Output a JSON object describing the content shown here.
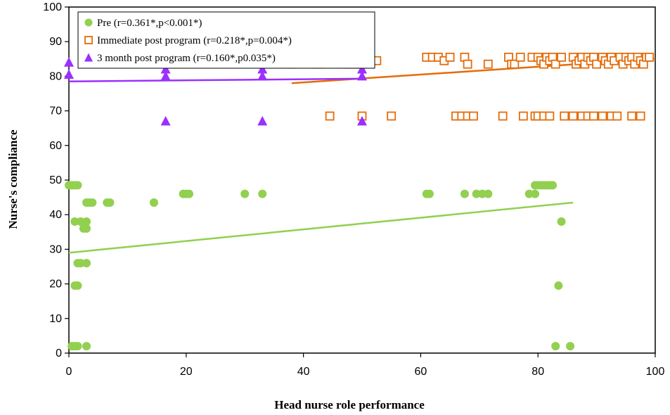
{
  "chart_data": {
    "type": "scatter",
    "xlabel": "Head nurse role performance",
    "ylabel": "Nurse's compliance",
    "xlim": [
      0,
      100
    ],
    "ylim": [
      0,
      100
    ],
    "xticks": [
      0,
      20,
      40,
      60,
      80,
      100
    ],
    "yticks": [
      0,
      10,
      20,
      30,
      40,
      50,
      60,
      70,
      80,
      90,
      100
    ],
    "grid": false,
    "legend_position": "top-left",
    "series": [
      {
        "name": "Pre (r=0.361*,p<0.001*)",
        "marker": "circle",
        "color": "#92d050",
        "trendline": [
          [
            0,
            29
          ],
          [
            86,
            43.5
          ]
        ],
        "points": [
          [
            0,
            48.5
          ],
          [
            0.5,
            48.5
          ],
          [
            1,
            48.5
          ],
          [
            1.5,
            48.5
          ],
          [
            1,
            38
          ],
          [
            2,
            38
          ],
          [
            3,
            38
          ],
          [
            2.5,
            36
          ],
          [
            3,
            36
          ],
          [
            3,
            43.5
          ],
          [
            3.5,
            43.5
          ],
          [
            4,
            43.5
          ],
          [
            6.5,
            43.5
          ],
          [
            7,
            43.5
          ],
          [
            14.5,
            43.5
          ],
          [
            1.5,
            26
          ],
          [
            2,
            26
          ],
          [
            3,
            26
          ],
          [
            1,
            19.5
          ],
          [
            1.5,
            19.5
          ],
          [
            0.5,
            2
          ],
          [
            1,
            2
          ],
          [
            1.5,
            2
          ],
          [
            3,
            2
          ],
          [
            19.5,
            46
          ],
          [
            20,
            46
          ],
          [
            20.5,
            46
          ],
          [
            30,
            46
          ],
          [
            33,
            46
          ],
          [
            61,
            46
          ],
          [
            61.5,
            46
          ],
          [
            67.5,
            46
          ],
          [
            69.5,
            46
          ],
          [
            70.5,
            46
          ],
          [
            71.5,
            46
          ],
          [
            78.5,
            46
          ],
          [
            79.5,
            46
          ],
          [
            79.5,
            48.5
          ],
          [
            80,
            48.5
          ],
          [
            80.5,
            48.5
          ],
          [
            81,
            48.5
          ],
          [
            81.5,
            48.5
          ],
          [
            82,
            48.5
          ],
          [
            82.5,
            48.5
          ],
          [
            84,
            38
          ],
          [
            83.5,
            19.5
          ],
          [
            83,
            2
          ],
          [
            85.5,
            2
          ]
        ]
      },
      {
        "name": "Immediate post program (r=0.218*,p=0.004*)",
        "marker": "square-open",
        "color": "#e46c0a",
        "trendline": [
          [
            38,
            78
          ],
          [
            100,
            85
          ]
        ],
        "points": [
          [
            38,
            83.5
          ],
          [
            42.5,
            83.5
          ],
          [
            47.5,
            83.5
          ],
          [
            48.5,
            83.5
          ],
          [
            49.5,
            83.5
          ],
          [
            47.5,
            85.5
          ],
          [
            49,
            85.5
          ],
          [
            52.5,
            84.5
          ],
          [
            61,
            85.5
          ],
          [
            62,
            85.5
          ],
          [
            63,
            85.5
          ],
          [
            64,
            84.5
          ],
          [
            65,
            85.5
          ],
          [
            67.5,
            85.5
          ],
          [
            68,
            83.5
          ],
          [
            71.5,
            83.5
          ],
          [
            75,
            85.5
          ],
          [
            75.5,
            83.5
          ],
          [
            76,
            83.5
          ],
          [
            77,
            85.5
          ],
          [
            79,
            85.5
          ],
          [
            80,
            85.5
          ],
          [
            80.5,
            84.5
          ],
          [
            81,
            83.5
          ],
          [
            81.5,
            85.5
          ],
          [
            82,
            84.5
          ],
          [
            82.5,
            85.5
          ],
          [
            83,
            83.5
          ],
          [
            84,
            85.5
          ],
          [
            86,
            85.5
          ],
          [
            86.5,
            83.5
          ],
          [
            87,
            84.5
          ],
          [
            87.5,
            85.5
          ],
          [
            88,
            83.5
          ],
          [
            88.5,
            85.5
          ],
          [
            89,
            84.5
          ],
          [
            89.5,
            85.5
          ],
          [
            90,
            83.5
          ],
          [
            91,
            85.5
          ],
          [
            91.5,
            84.5
          ],
          [
            92,
            83.5
          ],
          [
            92.5,
            85.5
          ],
          [
            93,
            84.5
          ],
          [
            94,
            85.5
          ],
          [
            94.5,
            83.5
          ],
          [
            95,
            85.5
          ],
          [
            95.5,
            84.5
          ],
          [
            96,
            85.5
          ],
          [
            96.5,
            83.5
          ],
          [
            97,
            85.5
          ],
          [
            97.5,
            84.5
          ],
          [
            98,
            83.5
          ],
          [
            98.5,
            85.5
          ],
          [
            99,
            85.5
          ],
          [
            44.5,
            68.5
          ],
          [
            50,
            68.5
          ],
          [
            55,
            68.5
          ],
          [
            66,
            68.5
          ],
          [
            67,
            68.5
          ],
          [
            68,
            68.5
          ],
          [
            69,
            68.5
          ],
          [
            74,
            68.5
          ],
          [
            77.5,
            68.5
          ],
          [
            79.5,
            68.5
          ],
          [
            80,
            68.5
          ],
          [
            81,
            68.5
          ],
          [
            82,
            68.5
          ],
          [
            84.5,
            68.5
          ],
          [
            86,
            68.5
          ],
          [
            87.5,
            68.5
          ],
          [
            88.5,
            68.5
          ],
          [
            89.5,
            68.5
          ],
          [
            91,
            68.5
          ],
          [
            92.5,
            68.5
          ],
          [
            93.5,
            68.5
          ],
          [
            96,
            68.5
          ],
          [
            97.5,
            68.5
          ]
        ]
      },
      {
        "name": "3 month post program (r=0.160*,p0.035*)",
        "marker": "triangle",
        "color": "#9b30ff",
        "trendline": [
          [
            0,
            78.5
          ],
          [
            50,
            79.3
          ]
        ],
        "points": [
          [
            0,
            84
          ],
          [
            0,
            80.5
          ],
          [
            16.5,
            84
          ],
          [
            16.5,
            82
          ],
          [
            16.5,
            80
          ],
          [
            16.5,
            67
          ],
          [
            33,
            84
          ],
          [
            33,
            82
          ],
          [
            33,
            80
          ],
          [
            33,
            67
          ],
          [
            50,
            84
          ],
          [
            50,
            82
          ],
          [
            50,
            80
          ],
          [
            50,
            67
          ]
        ]
      }
    ]
  }
}
